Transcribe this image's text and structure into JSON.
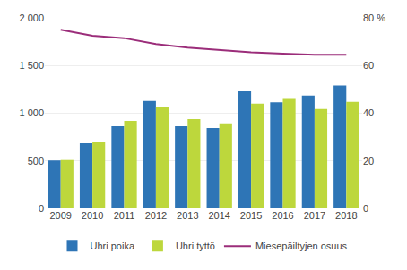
{
  "chart_data": {
    "type": "bar",
    "categories": [
      "2009",
      "2010",
      "2011",
      "2012",
      "2013",
      "2014",
      "2015",
      "2016",
      "2017",
      "2018"
    ],
    "series": [
      {
        "name": "Uhri poika",
        "type": "bar",
        "color": "#2e75b6",
        "values": [
          505,
          685,
          865,
          1130,
          865,
          845,
          1230,
          1115,
          1185,
          1290
        ]
      },
      {
        "name": "Uhri tyttö",
        "type": "bar",
        "color": "#bdd73c",
        "values": [
          510,
          695,
          920,
          1060,
          940,
          885,
          1100,
          1150,
          1045,
          1120
        ]
      },
      {
        "name": "Miesepäiltyjen osuus",
        "type": "line",
        "axis": "y2",
        "color": "#9b2d7a",
        "values": [
          75.0,
          72.5,
          71.5,
          69.0,
          67.5,
          66.5,
          65.5,
          65.0,
          64.5,
          64.5
        ]
      }
    ],
    "ylim": [
      0,
      2000
    ],
    "yticks": [
      0,
      500,
      {
        "value": 1000,
        "label": "1 000"
      },
      {
        "value": 1500,
        "label": "1 500"
      },
      {
        "value": 2000,
        "label": "2 000"
      }
    ],
    "y2lim": [
      0,
      80
    ],
    "y2ticks": [
      0,
      20,
      40,
      60,
      {
        "value": 80,
        "label": "80 %"
      }
    ],
    "grid": true,
    "legend": "bottom"
  }
}
